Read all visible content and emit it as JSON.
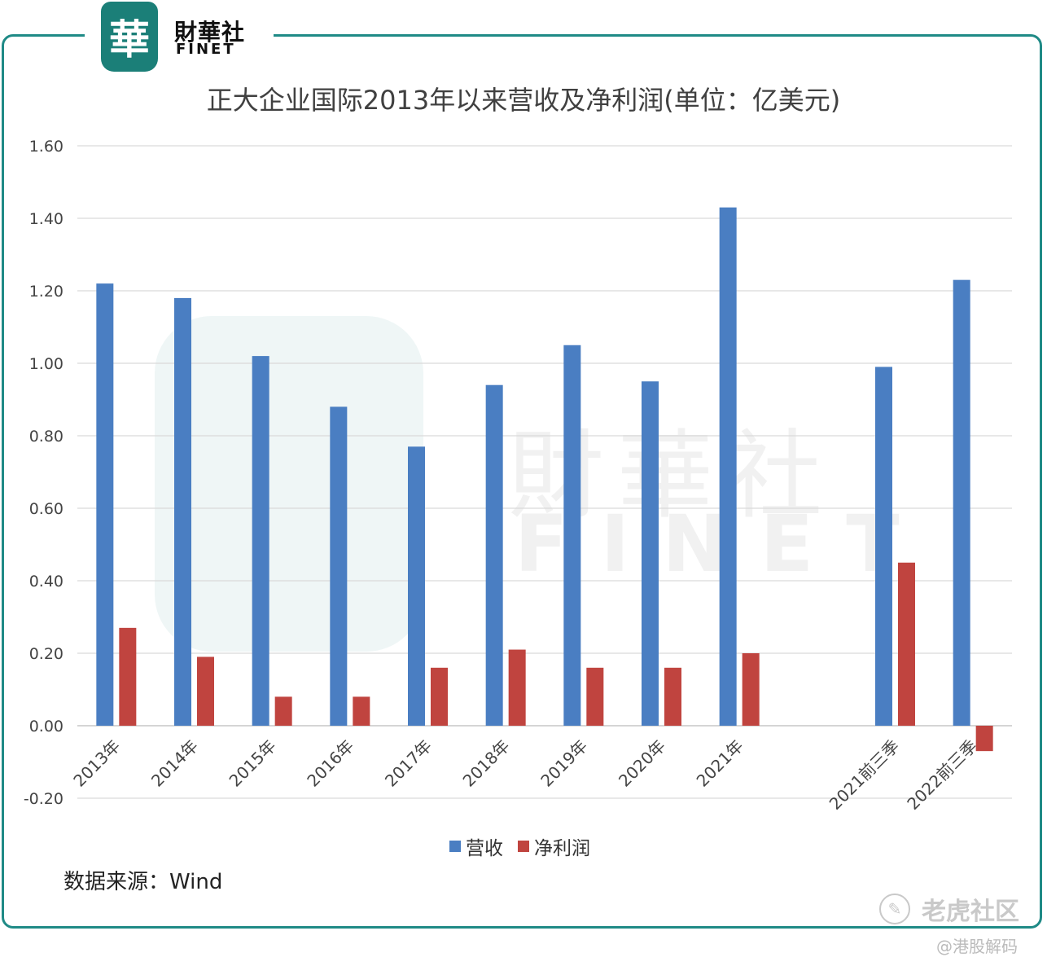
{
  "brand": {
    "seal_char": "華",
    "name_cn": "財華社",
    "name_en": "FINET",
    "accent": "#1f8a86"
  },
  "chart_data": {
    "type": "bar",
    "title": "正大企业国际2013年以来营收及净利润(单位：亿美元)",
    "categories": [
      "2013年",
      "2014年",
      "2015年",
      "2016年",
      "2017年",
      "2018年",
      "2019年",
      "2020年",
      "2021年",
      "",
      "2021前三季",
      "2022前三季"
    ],
    "series": [
      {
        "name": "营收",
        "color": "#4a7ec2",
        "values": [
          1.22,
          1.18,
          1.02,
          0.88,
          0.77,
          0.94,
          1.05,
          0.95,
          1.43,
          null,
          0.99,
          1.23
        ]
      },
      {
        "name": "净利润",
        "color": "#c0443f",
        "values": [
          0.27,
          0.19,
          0.08,
          0.08,
          0.16,
          0.21,
          0.16,
          0.16,
          0.2,
          null,
          0.45,
          -0.07
        ]
      }
    ],
    "yticks": [
      "1.60",
      "1.40",
      "1.20",
      "1.00",
      "0.80",
      "0.60",
      "0.40",
      "0.20",
      "0.00",
      "-0.20"
    ],
    "ylim": [
      -0.2,
      1.6
    ],
    "grid": true,
    "legend_position": "bottom"
  },
  "source_label": "数据来源：Wind",
  "watermark": {
    "cn": "財華社",
    "en": "FINET",
    "seal": "華"
  },
  "footer": {
    "brand": "老虎社区",
    "icon": "tiger-icon",
    "handle": "@港股解码"
  }
}
